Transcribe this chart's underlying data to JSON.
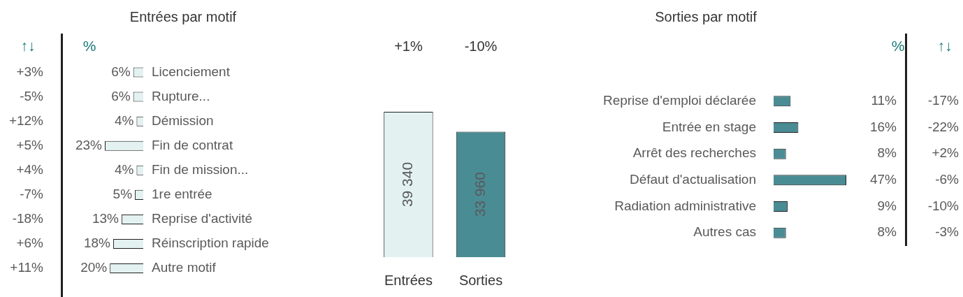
{
  "chart_data": [
    {
      "type": "bar",
      "orientation": "horizontal",
      "title": "Entrées par motif",
      "categories": [
        "Licenciement",
        "Rupture...",
        "Démission",
        "Fin de contrat",
        "Fin de mission...",
        "1re entrée",
        "Reprise d'activité",
        "Réinscription rapide",
        "Autre motif"
      ],
      "values": [
        6,
        6,
        4,
        23,
        4,
        5,
        13,
        18,
        20
      ],
      "value_labels": [
        "6%",
        "6%",
        "4%",
        "23%",
        "4%",
        "5%",
        "13%",
        "18%",
        "20%"
      ],
      "color": "#e3f2f1",
      "annotations": [
        "↑↓",
        "%",
        "+3%",
        "-5%",
        "+12%",
        "+5%",
        "+4%",
        "-7%",
        "-18%",
        "+6%",
        "+11%"
      ]
    },
    {
      "type": "bar",
      "categories": [
        "Entrées",
        "Sorties"
      ],
      "values": [
        39340,
        33960
      ],
      "value_labels": [
        "39 340",
        "33 960"
      ],
      "colors": [
        "#e3f2f1",
        "#4a8c94"
      ],
      "annotations": [
        "+1%",
        "-10%"
      ]
    },
    {
      "type": "bar",
      "orientation": "horizontal",
      "title": "Sorties par motif",
      "categories": [
        "Reprise d'emploi déclarée",
        "Entrée en stage",
        "Arrêt des recherches",
        "Défaut d'actualisation",
        "Radiation administrative",
        "Autres cas"
      ],
      "values": [
        11,
        16,
        8,
        47,
        9,
        8
      ],
      "value_labels": [
        "11%",
        "16%",
        "8%",
        "47%",
        "9%",
        "8%"
      ],
      "color": "#4a8c94",
      "annotations": [
        "%",
        "↑↓",
        "-17%",
        "-22%",
        "+2%",
        "-6%",
        "-10%",
        "-3%"
      ]
    }
  ]
}
